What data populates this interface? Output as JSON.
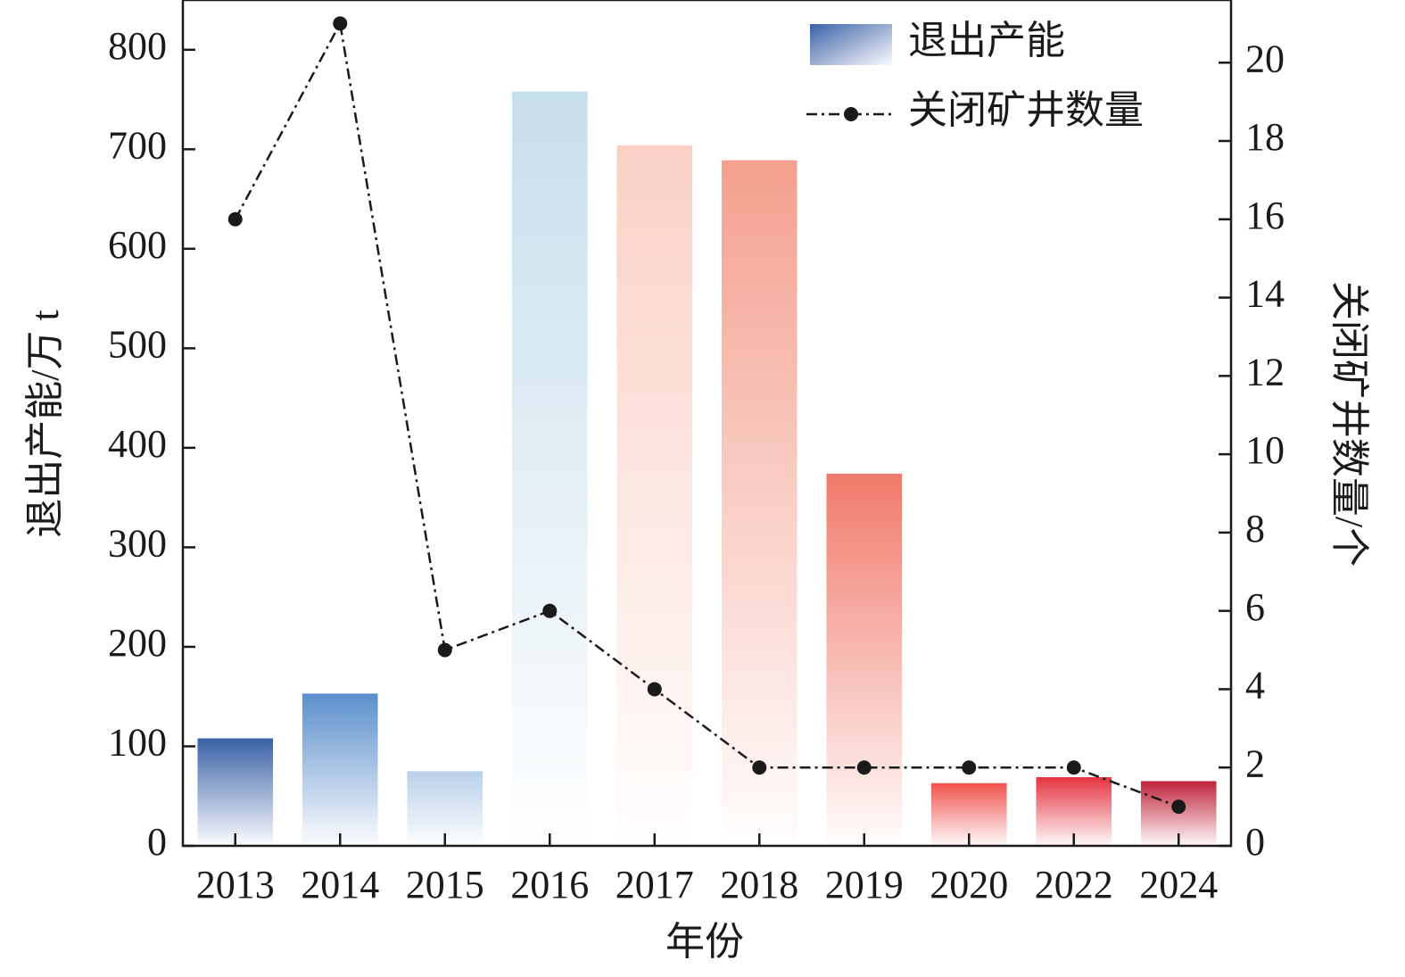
{
  "chart_data": {
    "type": "bar",
    "categories": [
      "2013",
      "2014",
      "2015",
      "2016",
      "2017",
      "2018",
      "2019",
      "2020",
      "2022",
      "2024"
    ],
    "series": [
      {
        "name": "退出产能",
        "type": "bar",
        "colors": [
          "#3a62a8",
          "#5b8fcc",
          "#b7d0e8",
          "#c6dfec",
          "#fad0c4",
          "#f4a08e",
          "#f07a6a",
          "#f0524c",
          "#e53340",
          "#c0243a"
        ],
        "values": [
          108,
          153,
          75,
          758,
          704,
          689,
          374,
          63,
          69,
          65
        ]
      },
      {
        "name": "关闭矿井数量",
        "type": "line",
        "axis": "y2",
        "color": "#1a1a1a",
        "values": [
          16,
          21,
          5,
          6,
          4,
          2,
          2,
          2,
          2,
          1
        ]
      }
    ],
    "x_label": "年份",
    "y_label": "退出产能/万 t",
    "y2_label": "关闭矿井数量/个",
    "ylim": [
      0,
      850
    ],
    "yticks": [
      0,
      100,
      200,
      300,
      400,
      500,
      600,
      700,
      800
    ],
    "y2lim": [
      0,
      21.6
    ],
    "y2ticks": [
      0,
      2,
      4,
      6,
      8,
      10,
      12,
      14,
      16,
      18,
      20
    ],
    "legend": "upper right"
  }
}
